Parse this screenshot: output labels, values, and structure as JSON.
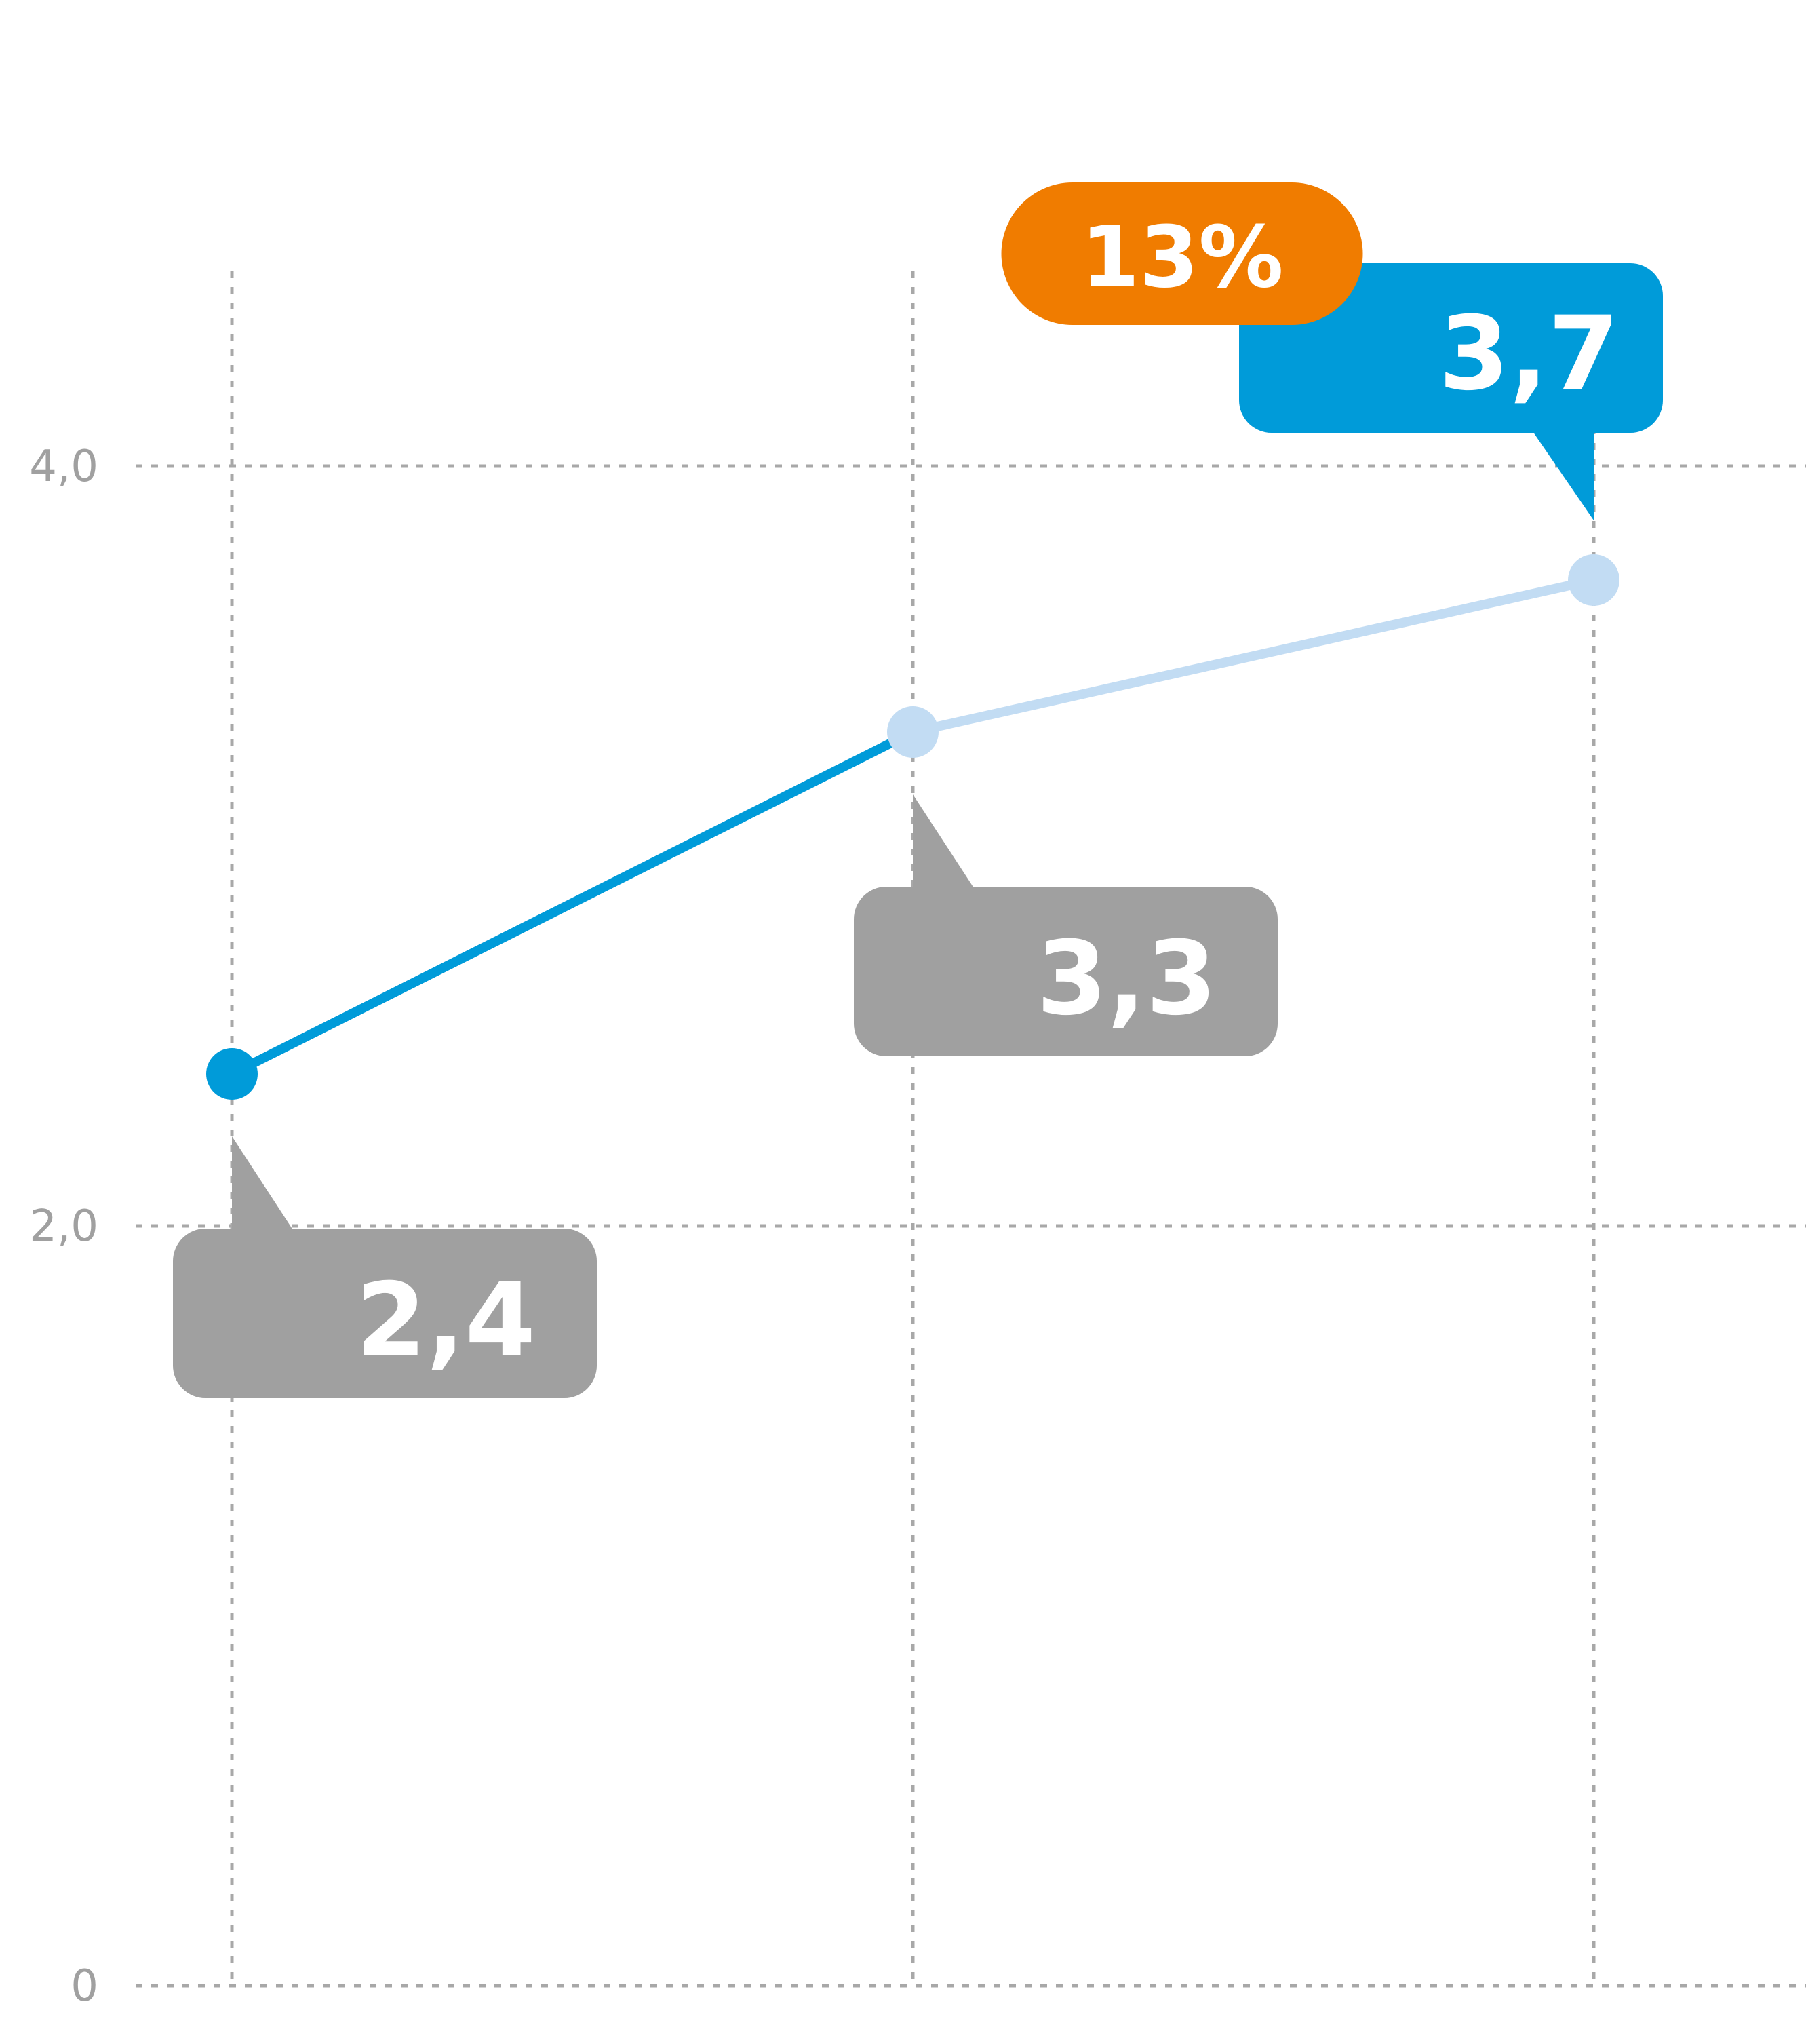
{
  "chart_data": {
    "type": "line",
    "x": [
      1,
      2,
      3
    ],
    "ylim": [
      0,
      5.5
    ],
    "y_ticks": [
      0,
      2,
      4
    ],
    "y_tick_labels": [
      "0",
      "2,0",
      "4,0"
    ],
    "grid": true,
    "series": [
      {
        "values": [
          2.4,
          3.3,
          3.7
        ],
        "labels": [
          "2,4",
          "3,3",
          "3,7"
        ],
        "segment_colors": [
          "#009bd9",
          "#c2dcf3"
        ],
        "point_colors": [
          "#009bd9",
          "#c2dcf3",
          "#c2dcf3"
        ],
        "label_colors": [
          "#a0a0a0",
          "#a0a0a0",
          "#009bd9"
        ]
      }
    ],
    "annotations": [
      {
        "text": "13%",
        "color": "#f07c00",
        "anchor_index": 2
      }
    ]
  }
}
